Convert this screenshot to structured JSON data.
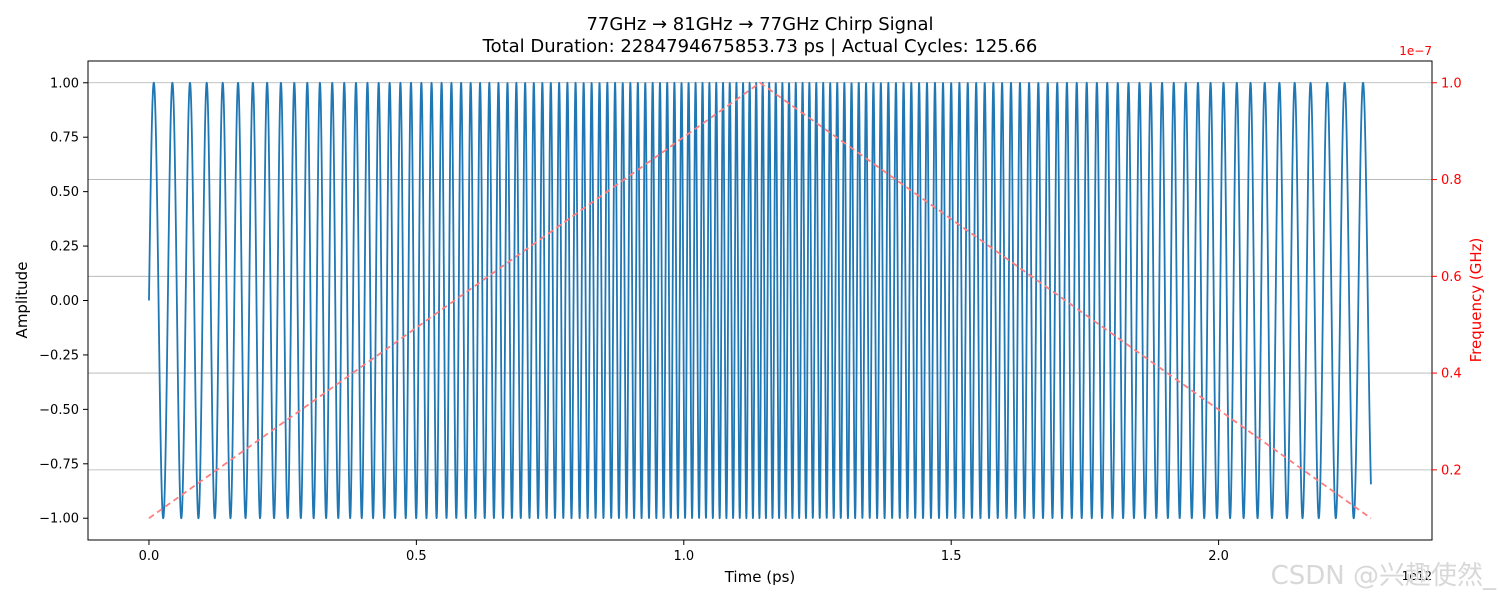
{
  "chart_data": {
    "type": "line",
    "title": "77GHz → 81GHz → 77GHz Chirp Signal",
    "subtitle": "Total Duration: 2284794675853.73 ps | Actual Cycles: 125.66",
    "xlabel": "Time (ps)",
    "ylabel": "Amplitude",
    "y2label": "Frequency (GHz)",
    "x_offset_label": "1e12",
    "y2_offset_label": "1e−7",
    "xlim": [
      -0.114,
      2.399
    ],
    "xscale": 1000000000000.0,
    "ylim": [
      -1.1,
      1.1
    ],
    "y2lim": [
      0.055,
      1.045
    ],
    "y2scale": 1e-07,
    "xticks": [
      0,
      0.5,
      1.0,
      1.5,
      2.0
    ],
    "xtick_labels": [
      "0.0",
      "0.5",
      "1.0",
      "1.5",
      "2.0"
    ],
    "yticks": [
      1.0,
      0.75,
      0.5,
      0.25,
      0.0,
      -0.25,
      -0.5,
      -0.75,
      -1.0
    ],
    "ytick_labels": [
      "1.00",
      "0.75",
      "0.50",
      "0.25",
      "0.00",
      "−0.25",
      "−0.50",
      "−0.75",
      "−1.00"
    ],
    "y2ticks": [
      1.0,
      0.8,
      0.6,
      0.4,
      0.2
    ],
    "y2tick_labels": [
      "1.0",
      "0.8",
      "0.6",
      "0.4",
      "0.2"
    ],
    "grid": "y2-horizontal",
    "series": [
      {
        "axis": "left",
        "color": "#1f77b4",
        "style": "solid",
        "x_range": [
          0,
          2.2848
        ],
        "cycles": 125.66,
        "function": "sin(2*pi*phase), instantaneous frequency ramps linearly up to the midpoint then back down"
      },
      {
        "axis": "right",
        "color": "#ff7f7f",
        "style": "dashed",
        "x": [
          0,
          1.1424,
          2.2848
        ],
        "values": [
          0.1,
          1.0,
          0.1
        ]
      }
    ],
    "watermark": "CSDN @兴趣使然_"
  }
}
